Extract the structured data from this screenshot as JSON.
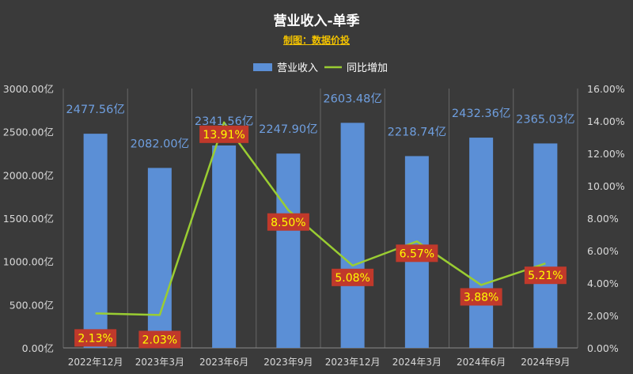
{
  "title": "营业收入-单季",
  "subtitle": "制图：数据价投",
  "colors": {
    "background": "#3a3a3a",
    "bar": "#5b8fd6",
    "line": "#9acd32",
    "bar_label": "#6f9fe0",
    "pct_label_bg": "#c0392b",
    "pct_label_text": "#ffff00",
    "axis_text": "#d9d9d9",
    "grid": "#666666"
  },
  "chart_data": {
    "type": "bar",
    "categories": [
      "2022年12月",
      "2023年3月",
      "2023年6月",
      "2023年9月",
      "2023年12月",
      "2024年3月",
      "2024年6月",
      "2024年9月"
    ],
    "series": [
      {
        "name": "营业收入",
        "type": "bar",
        "axis": "left",
        "values": [
          2477.56,
          2082.0,
          2341.56,
          2247.9,
          2603.48,
          2218.74,
          2432.36,
          2365.03
        ],
        "labels": [
          "2477.56亿",
          "2082.00亿",
          "2341.56亿",
          "2247.90亿",
          "2603.48亿",
          "2218.74亿",
          "2432.36亿",
          "2365.03亿"
        ]
      },
      {
        "name": "同比增加",
        "type": "line",
        "axis": "right",
        "values": [
          2.13,
          2.03,
          13.91,
          8.5,
          5.08,
          6.57,
          3.88,
          5.21
        ],
        "labels": [
          "2.13%",
          "2.03%",
          "13.91%",
          "8.50%",
          "5.08%",
          "6.57%",
          "3.88%",
          "5.21%"
        ]
      }
    ],
    "y_left": {
      "lim": [
        0,
        3000
      ],
      "ticks": [
        0,
        500,
        1000,
        1500,
        2000,
        2500,
        3000
      ],
      "tick_labels": [
        "0.00亿",
        "500.00亿",
        "1000.00亿",
        "1500.00亿",
        "2000.00亿",
        "2500.00亿",
        "3000.00亿"
      ]
    },
    "y_right": {
      "lim": [
        0,
        16
      ],
      "ticks": [
        0,
        2,
        4,
        6,
        8,
        10,
        12,
        14,
        16
      ],
      "tick_labels": [
        "0.00%",
        "2.00%",
        "4.00%",
        "6.00%",
        "8.00%",
        "10.00%",
        "12.00%",
        "14.00%",
        "16.00%"
      ]
    },
    "legend_position": "top",
    "grid": "vertical"
  }
}
